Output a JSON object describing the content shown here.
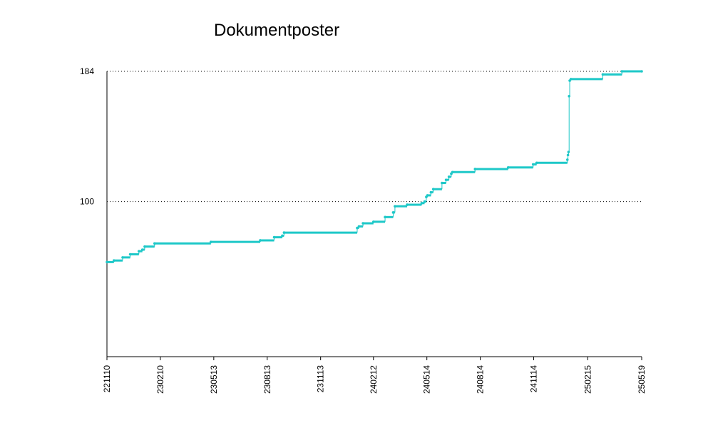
{
  "chart_data": {
    "type": "step",
    "title": "Dokumentposter",
    "color": "#1ec8c8",
    "x": [
      "221110",
      "221122",
      "221207",
      "221220",
      "230104",
      "230110",
      "230114",
      "230131",
      "230508",
      "230801",
      "230825",
      "230908",
      "230911",
      "240115",
      "240118",
      "240125",
      "240212",
      "240303",
      "240317",
      "240320",
      "240410",
      "240505",
      "240510",
      "240513",
      "240515",
      "240521",
      "240525",
      "240609",
      "240616",
      "240621",
      "240625",
      "240627",
      "240805",
      "241001",
      "241113",
      "241119",
      "250111",
      "250112",
      "250113",
      "250114",
      "250115",
      "250117",
      "250313",
      "250415",
      "250519"
    ],
    "values": [
      61,
      62,
      64,
      66,
      68,
      69,
      71,
      73,
      74,
      75,
      77,
      78,
      80,
      83,
      84,
      86,
      87,
      90,
      93,
      97,
      98,
      99,
      100,
      103,
      104,
      106,
      108,
      112,
      114,
      116,
      118,
      119,
      121,
      122,
      124,
      125,
      127,
      130,
      132,
      168,
      178,
      179,
      182,
      184,
      184
    ],
    "xlim": [
      "221110",
      "250519"
    ],
    "xticks": [
      "221110",
      "230210",
      "230513",
      "230813",
      "231113",
      "240212",
      "240514",
      "240814",
      "241114",
      "250215",
      "250519"
    ],
    "ylim": [
      0,
      184
    ],
    "yticks": [
      100,
      184
    ],
    "grid": true
  }
}
